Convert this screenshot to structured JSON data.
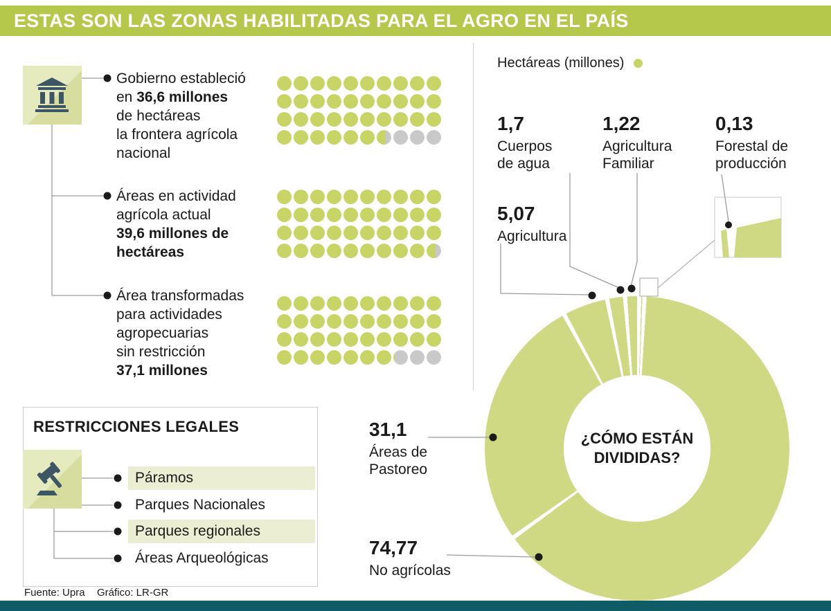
{
  "header": {
    "title": "ESTAS SON LAS ZONAS HABILITADAS PARA EL AGRO EN EL PAÍS"
  },
  "colors": {
    "header_green": "#b5c84b",
    "dot_green": "#c8d465",
    "dot_gray": "#c9c9c9",
    "donut_green": "#cfd883",
    "tile_bg": "#e6eabf",
    "tile_shadow": "#d7dd9f",
    "highlight": "#ebeed3",
    "icon_navy": "#3d5666",
    "footer_bar": "#0f5b66",
    "text_dark": "#1a1a1a"
  },
  "left_panel": {
    "bullets": [
      {
        "lines": [
          [
            {
              "t": "Gobierno estableció",
              "b": false
            }
          ],
          [
            {
              "t": "en ",
              "b": false
            },
            {
              "t": "36,6 millones",
              "b": true
            }
          ],
          [
            {
              "t": "de hectáreas",
              "b": false
            }
          ],
          [
            {
              "t": "la frontera agrícola",
              "b": false
            }
          ],
          [
            {
              "t": "nacional",
              "b": false
            }
          ]
        ]
      },
      {
        "lines": [
          [
            {
              "t": "Áreas en actividad",
              "b": false
            }
          ],
          [
            {
              "t": "agrícola actual",
              "b": false
            }
          ],
          [
            {
              "t": "39,6 millones de",
              "b": true
            }
          ],
          [
            {
              "t": "hectáreas",
              "b": true
            }
          ]
        ]
      },
      {
        "lines": [
          [
            {
              "t": "Área transformadas",
              "b": false
            }
          ],
          [
            {
              "t": "para actividades",
              "b": false
            }
          ],
          [
            {
              "t": "agropecuarias",
              "b": false
            }
          ],
          [
            {
              "t": "sin restricción",
              "b": false
            }
          ],
          [
            {
              "t": "37,1 millones",
              "b": true
            }
          ]
        ]
      }
    ]
  },
  "restrictions": {
    "title": "RESTRICCIONES LEGALES",
    "items": [
      {
        "label": "Páramos",
        "highlighted": true
      },
      {
        "label": "Parques Nacionales",
        "highlighted": false
      },
      {
        "label": "Parques regionales",
        "highlighted": true
      },
      {
        "label": "Áreas Arqueológicas",
        "highlighted": false
      }
    ]
  },
  "chart_data": [
    {
      "type": "pie",
      "title": "¿CÓMO ESTÁN DIVIDIDAS?",
      "center_title_lines": [
        "¿CÓMO ESTÁN",
        "DIVIDIDAS?"
      ],
      "legend": {
        "label": "Hectáreas (millones)"
      },
      "unit": "millones de hectáreas",
      "slices": [
        {
          "name": "Cuerpos de agua",
          "value": 1.7,
          "display": "1,7",
          "label_lines": [
            "Cuerpos",
            "de agua"
          ]
        },
        {
          "name": "Agricultura Familiar",
          "value": 1.22,
          "display": "1,22",
          "label_lines": [
            "Agricultura",
            "Familiar"
          ]
        },
        {
          "name": "Forestal de producción",
          "value": 0.13,
          "display": "0,13",
          "label_lines": [
            "Forestal de",
            "producción"
          ]
        },
        {
          "name": "Agricultura",
          "value": 5.07,
          "display": "5,07",
          "label_lines": [
            "Agricultura"
          ]
        },
        {
          "name": "Áreas de Pastoreo",
          "value": 31.1,
          "display": "31,1",
          "label_lines": [
            "Áreas de",
            "Pastoreo"
          ]
        },
        {
          "name": "No agrícolas",
          "value": 74.77,
          "display": "74,77",
          "label_lines": [
            "No agrícolas"
          ]
        }
      ],
      "clockwise_order_from_top": [
        2,
        5,
        4,
        3,
        0,
        1
      ],
      "all_slices_same_color": true
    },
    {
      "type": "pictogram",
      "unit": "millones de hectáreas",
      "dot_value": 1,
      "dots_per_row": 10,
      "rows_per_grid": 4,
      "series": [
        {
          "name": "Frontera agrícola nacional establecida por el Gobierno",
          "value": 36.6
        },
        {
          "name": "Áreas en actividad agrícola actual",
          "value": 39.6
        },
        {
          "name": "Área transformadas para actividades agropecuarias sin restricción",
          "value": 37.1
        }
      ]
    }
  ],
  "footer": {
    "source": "Fuente: Upra",
    "credit": "Gráfico: LR-GR"
  }
}
